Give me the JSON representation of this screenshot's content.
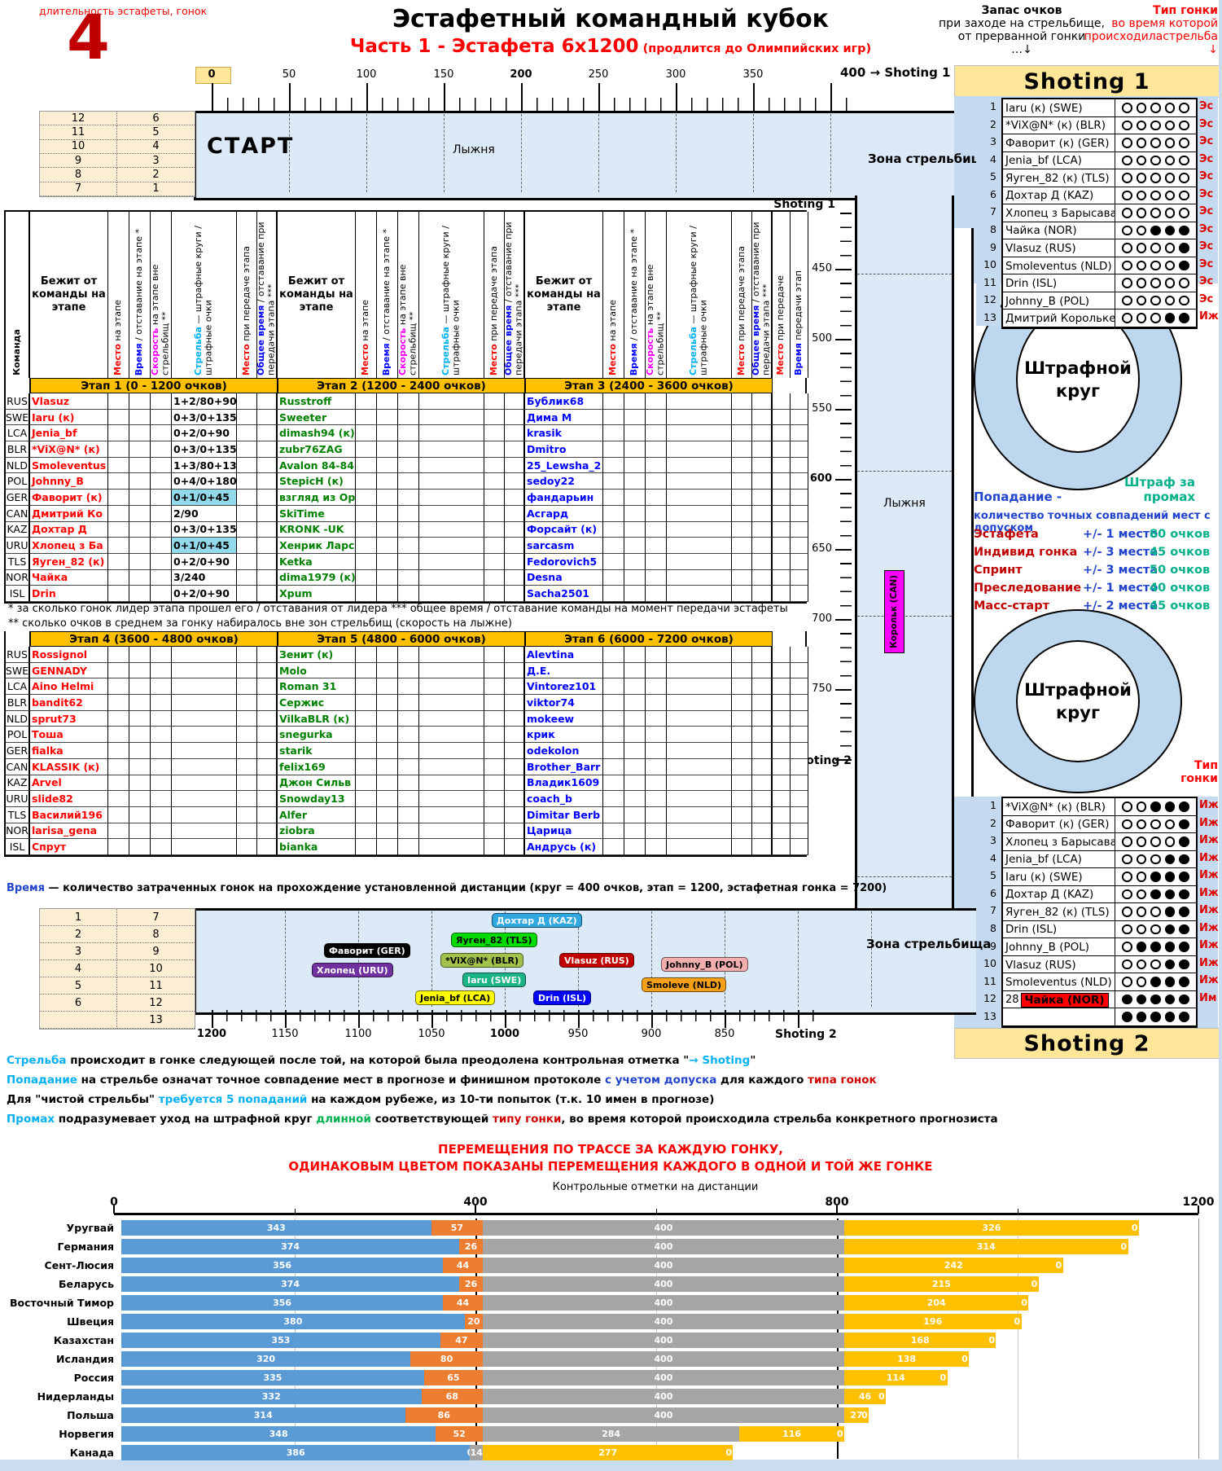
{
  "palette": {
    "accent_gold": "#FFC000",
    "header_gold": "#FFE699",
    "cream": "#FBEED2",
    "track_blue": "#DCE9F6",
    "zone_blue": "#C5DAEF",
    "ring_blue": "#BDD7EE",
    "highlight_cyan": "#92D9EC",
    "name_red": "#FF0000",
    "name_green": "#008000",
    "name_blue": "#0000FF",
    "type_red": "#E00000",
    "magenta": "#FF00FF",
    "cyan": "#00B0F0",
    "note_blue": "#2244CC",
    "teal": "#00B08B",
    "chart_blue": "#5B9BD5",
    "chart_orange": "#ED7D31",
    "chart_gray": "#A5A5A5",
    "chart_yellow": "#FFC000"
  },
  "header": {
    "duration_label": "длительность эстафеты, гонок",
    "duration_value": "4",
    "title": "Эстафетный командный кубок",
    "subtitle": "Часть 1 - Эстафета 6х1200",
    "subtitle_note": "(продлится до Олимпийских игр)",
    "reserve_line1": "Запас очков",
    "reserve_line2": "при заходе на стрельбище,",
    "reserve_line3": "от прерванной гонки",
    "reserve_arrow": "…↓",
    "type_line1": "Тип гонки",
    "type_line2": "во время которой",
    "type_line3": "происходиластрельба",
    "type_arrow": "↓"
  },
  "rulers": {
    "top_labels": [
      "0",
      "50",
      "100",
      "150",
      "200",
      "250",
      "300",
      "350"
    ],
    "top_end": "400 → Shoting 1",
    "vertical_labels": [
      "450",
      "500",
      "550",
      "600",
      "650",
      "700",
      "750"
    ],
    "vertical_end": "800 → Shoting 2",
    "shoting1_mark": "Shoting 1",
    "bottom_labels": [
      "1200",
      "1150",
      "1100",
      "1050",
      "1000",
      "950",
      "900",
      "850"
    ],
    "bottom_end": "Shoting 2"
  },
  "start_zone": {
    "start": "СТАРТ",
    "track": "Лыжня",
    "grid": [
      [
        "12",
        "6"
      ],
      [
        "11",
        "5"
      ],
      [
        "10",
        "4"
      ],
      [
        "9",
        "3"
      ],
      [
        "8",
        "2"
      ],
      [
        "7",
        "1"
      ]
    ]
  },
  "bottom_zone": {
    "grid": [
      [
        "1",
        "7"
      ],
      [
        "2",
        "8"
      ],
      [
        "3",
        "9"
      ],
      [
        "4",
        "10"
      ],
      [
        "5",
        "11"
      ],
      [
        "6",
        "12"
      ],
      [
        "",
        "13"
      ]
    ]
  },
  "zone_label": "Зона стрельбища",
  "band": {
    "track": "Лыжня",
    "skier": "Корольк (CAN)"
  },
  "penalty": {
    "circle_line1": "Штрафной",
    "circle_line2": "круг",
    "miss_line1": "Штраф за",
    "miss_line2": "промах",
    "hit_title": "Попадание -",
    "hit_desc": "количество точных совпадений мест с допуском",
    "rows": [
      {
        "race": "Эстафета",
        "tol": "+/- 1 место",
        "pts": "80 очков"
      },
      {
        "race": "Индивид гонка",
        "tol": "+/- 3 места",
        "pts": "45 очков"
      },
      {
        "race": "Спринт",
        "tol": "+/- 3 места",
        "pts": "50 очков"
      },
      {
        "race": "Преследование",
        "tol": "+/- 1 место",
        "pts": "40 очков"
      },
      {
        "race": "Масс-старт",
        "tol": "+/- 2 места",
        "pts": "45 очков"
      }
    ]
  },
  "shoting1": {
    "title": "Shoting 1",
    "rows": [
      {
        "rank": "1",
        "name": "Iaru (к) (SWE)",
        "shots": [
          0,
          0,
          0,
          0,
          0
        ],
        "type": "Эс"
      },
      {
        "rank": "2",
        "name": "*ViX@N* (к) (BLR)",
        "shots": [
          0,
          0,
          0,
          0,
          0
        ],
        "type": "Эс"
      },
      {
        "rank": "3",
        "name": "Фаворит (к) (GER)",
        "shots": [
          0,
          0,
          0,
          0,
          0
        ],
        "type": "Эс"
      },
      {
        "rank": "4",
        "name": "Jenia_bf (LCA)",
        "shots": [
          0,
          0,
          0,
          0,
          0
        ],
        "type": "Эс"
      },
      {
        "rank": "5",
        "name": "Яуген_82 (к) (TLS)",
        "shots": [
          0,
          0,
          0,
          0,
          0
        ],
        "type": "Эс"
      },
      {
        "rank": "6",
        "name": "Дохтар Д (KAZ)",
        "shots": [
          0,
          0,
          0,
          0,
          0
        ],
        "type": "Эс"
      },
      {
        "rank": "7",
        "name": "Хлопец з Барысава (к",
        "shots": [
          0,
          0,
          0,
          0,
          0
        ],
        "type": "Эс"
      },
      {
        "rank": "8",
        "name": "Чайка (NOR)",
        "shots": [
          0,
          0,
          1,
          1,
          1
        ],
        "type": "Эс"
      },
      {
        "rank": "9",
        "name": "Vlasuz (RUS)",
        "shots": [
          0,
          0,
          0,
          0,
          1
        ],
        "type": "Эс"
      },
      {
        "rank": "10",
        "name": "Smoleventus (NLD)",
        "shots": [
          0,
          0,
          0,
          0,
          1
        ],
        "type": "Эс"
      },
      {
        "rank": "11",
        "name": "Drin (ISL)",
        "shots": [
          0,
          0,
          0,
          0,
          0
        ],
        "type": "Эс"
      },
      {
        "rank": "12",
        "name": "Johnny_B  (POL)",
        "shots": [
          0,
          0,
          0,
          0,
          0
        ],
        "type": "Эс"
      },
      {
        "rank": "13",
        "name": "Дмитрий Королькеви",
        "shots": [
          0,
          0,
          0,
          1,
          1
        ],
        "type": "Иж"
      }
    ]
  },
  "shoting2": {
    "title": "Shoting 2",
    "type_line1": "Тип",
    "type_line2": "гонки",
    "rows": [
      {
        "rank": "1",
        "name": "*ViX@N* (к) (BLR)",
        "shots": [
          0,
          0,
          1,
          1,
          1
        ],
        "type": "Иж"
      },
      {
        "rank": "2",
        "name": "Фаворит (к) (GER)",
        "shots": [
          0,
          0,
          0,
          0,
          1
        ],
        "type": "Иж"
      },
      {
        "rank": "3",
        "name": "Хлопец з Барысава (к",
        "shots": [
          0,
          0,
          0,
          0,
          1
        ],
        "type": "Иж"
      },
      {
        "rank": "4",
        "name": "Jenia_bf (LCA)",
        "shots": [
          0,
          0,
          0,
          1,
          1
        ],
        "type": "Иж"
      },
      {
        "rank": "5",
        "name": "Iaru (к) (SWE)",
        "shots": [
          0,
          0,
          1,
          1,
          1
        ],
        "type": "Иж"
      },
      {
        "rank": "6",
        "name": "Дохтар Д (KAZ)",
        "shots": [
          0,
          0,
          1,
          1,
          1
        ],
        "type": "Иж"
      },
      {
        "rank": "7",
        "name": "Яуген_82 (к) (TLS)",
        "shots": [
          0,
          0,
          0,
          1,
          1
        ],
        "type": "Иж"
      },
      {
        "rank": "8",
        "name": "Drin (ISL)",
        "shots": [
          0,
          0,
          0,
          1,
          1
        ],
        "type": "Иж"
      },
      {
        "rank": "9",
        "name": "Johnny_B  (POL)",
        "shots": [
          0,
          1,
          1,
          1,
          1
        ],
        "type": "Иж"
      },
      {
        "rank": "10",
        "name": "Vlasuz (RUS)",
        "shots": [
          0,
          0,
          0,
          1,
          1
        ],
        "type": "Иж"
      },
      {
        "rank": "11",
        "name": "Smoleventus (NLD)",
        "shots": [
          0,
          0,
          1,
          1,
          1
        ],
        "type": "Иж"
      },
      {
        "rank": "12",
        "name": "Чайка (NOR)",
        "prefix": "28",
        "special": true,
        "shots": [
          1,
          1,
          1,
          1,
          1
        ],
        "type": "Им"
      },
      {
        "rank": "13",
        "name": "",
        "shots": [
          1,
          1,
          1,
          1,
          1
        ],
        "type": ""
      }
    ]
  },
  "main_table": {
    "col_komanda": "Команда",
    "col_runner": "Бежит от команды на этапе",
    "stat_headers": [
      {
        "lead": "Место",
        "lead_color": "red",
        "rest": " на этапе"
      },
      {
        "lead": "Время",
        "lead_color": "blue",
        "rest": "  / отставание на этапе *"
      },
      {
        "lead": "Скорость",
        "lead_color": "magenta",
        "rest": " на этапе вне стрельбищ **"
      },
      {
        "lead": "Стрельба",
        "lead_color": "cyan",
        "rest": "  —  штрафные круги / штрафные очки"
      },
      {
        "lead": "Место",
        "lead_color": "red",
        "rest": " при передаче этапа"
      },
      {
        "lead": "Общее время",
        "lead_color": "blue",
        "rest": "  / отставание при передачи этапа ***"
      }
    ],
    "final_headers": [
      {
        "lead": "Место",
        "lead_color": "red",
        "rest": "  при передаче"
      },
      {
        "lead": "Время",
        "lead_color": "blue",
        "rest": "  передачи этап"
      }
    ],
    "bands": [
      "Этап 1  (0 - 1200 очков)",
      "Этап 2  (1200 - 2400 очков)",
      "Этап 3  (2400 - 3600 очков)",
      "Этап 4  (3600 - 4800 очков)",
      "Этап 5  (4800 - 6000 очков)",
      "Этап 6  (6000 - 7200 очков)"
    ],
    "footnote1": "* за сколько гонок лидер этапа прошел его / отставания от лидера  *** общее время / отставание команды на момент передачи эстафеты",
    "footnote2": "** сколько очков в среднем за гонку набиралось вне зон стрельбищ (скорость на лыжне)",
    "teams": [
      {
        "code": "RUS",
        "s1": "Vlasuz",
        "sh1": "1+2/80+90",
        "hl": false,
        "s2": "Russtroff",
        "s3": "Бублик68",
        "s4": "Rossignol",
        "s5": "Зенит (к)",
        "s6": "Alevtina"
      },
      {
        "code": "SWE",
        "s1": "Iaru (к)",
        "sh1": "0+3/0+135",
        "hl": false,
        "s2": "Sweeter",
        "s3": "Дима М",
        "s4": "GENNADY",
        "s5": "Molo",
        "s6": "Д.Е."
      },
      {
        "code": "LCA",
        "s1": "Jenia_bf",
        "sh1": "0+2/0+90",
        "hl": false,
        "s2": "dimash94 (к)",
        "s3": "krasik",
        "s4": "Aino Helmi",
        "s5": "Roman 31",
        "s6": "Vintorez101"
      },
      {
        "code": "BLR",
        "s1": "*ViX@N* (к)",
        "sh1": "0+3/0+135",
        "hl": false,
        "s2": "zubr76ZAG",
        "s3": "Dmitro",
        "s4": "bandit62",
        "s5": "Сержис",
        "s6": "viktor74"
      },
      {
        "code": "NLD",
        "s1": "Smoleventus",
        "sh1": "1+3/80+135",
        "hl": false,
        "s2": "Avalon 84-84",
        "s3": "25_Lewsha_2",
        "s4": "sprut73",
        "s5": "VilkaBLR (к)",
        "s6": "mokeew"
      },
      {
        "code": "POL",
        "s1": "Johnny_B",
        "sh1": "0+4/0+180",
        "hl": false,
        "s2": "StepicH (к)",
        "s3": "sedoy22",
        "s4": "Тоша",
        "s5": "snegurka",
        "s6": "крик"
      },
      {
        "code": "GER",
        "s1": "Фаворит (к)",
        "sh1": "0+1/0+45",
        "hl": true,
        "s2": "взгляд из Ор",
        "s3": "фандарьин",
        "s4": "fialka",
        "s5": "starik",
        "s6": "odekolon"
      },
      {
        "code": "CAN",
        "s1": "Дмитрий Ко",
        "sh1": "2/90",
        "hl": false,
        "s2": "SkiTime",
        "s3": "Асгард",
        "s4": "KLASSIK (к)",
        "s5": "felix169",
        "s6": "Brother_Barr"
      },
      {
        "code": "KAZ",
        "s1": "Дохтар Д",
        "sh1": "0+3/0+135",
        "hl": false,
        "s2": "KRONK -UK",
        "s3": "Форсайт (к)",
        "s4": "Arvel",
        "s5": "Джон Сильв",
        "s6": "Владик1609"
      },
      {
        "code": "URU",
        "s1": "Хлопец з Ба",
        "sh1": "0+1/0+45",
        "hl": true,
        "s2": "Хенрик Ларс",
        "s3": "sarcasm",
        "s4": "slide82",
        "s5": "Snowday13",
        "s6": "coach_b"
      },
      {
        "code": "TLS",
        "s1": "Яуген_82 (к)",
        "sh1": "0+2/0+90",
        "hl": false,
        "s2": "Ketka",
        "s3": "Fedorovich5",
        "s4": "Василий196",
        "s5": "Alfer",
        "s6": "Dimitar Berb"
      },
      {
        "code": "NOR",
        "s1": "Чайка",
        "sh1": "3/240",
        "hl": false,
        "s2": "dima1979 (к)",
        "s3": "Desna",
        "s4": "larisa_gena",
        "s5": "ziobra",
        "s6": "Царица"
      },
      {
        "code": "ISL",
        "s1": "Drin",
        "sh1": "0+2/0+90",
        "hl": false,
        "s2": "Xpum",
        "s3": "Sacha2501",
        "s4": "Спрут",
        "s5": "bianka",
        "s6": "Андрусь (к)"
      }
    ]
  },
  "time_note": {
    "lead": "Время",
    "rest": " — количество затраченных гонок на прохождение установленной дистанции (круг = 400 очков, этап = 1200, эстафетная гонка = 7200)"
  },
  "markers": [
    {
      "label": "Фаворит (GER)",
      "x": 398,
      "y": 1158,
      "bg": "#000000",
      "fg": "#FFFFFF"
    },
    {
      "label": "Хлопец (URU)",
      "x": 383,
      "y": 1182,
      "bg": "#7030A0",
      "fg": "#FFFFFF"
    },
    {
      "label": "Jenia_bf (LCA)",
      "x": 510,
      "y": 1216,
      "bg": "#FFFF00",
      "fg": "#000000"
    },
    {
      "label": "*ViX@N* (BLR)",
      "x": 541,
      "y": 1170,
      "bg": "#A3C24C",
      "fg": "#000000"
    },
    {
      "label": "Яуген_82 (TLS)",
      "x": 554,
      "y": 1145,
      "bg": "#00DC00",
      "fg": "#000000"
    },
    {
      "label": "Iaru (SWE)",
      "x": 568,
      "y": 1194,
      "bg": "#1CB487",
      "fg": "#FFFFFF"
    },
    {
      "label": "Дохтар Д (KAZ)",
      "x": 604,
      "y": 1121,
      "bg": "#30A8DF",
      "fg": "#FFFFFF"
    },
    {
      "label": "Drin (ISL)",
      "x": 655,
      "y": 1216,
      "bg": "#0000FF",
      "fg": "#FFFFFF"
    },
    {
      "label": "Vlasuz (RUS)",
      "x": 687,
      "y": 1170,
      "bg": "#C00000",
      "fg": "#FFFFFF"
    },
    {
      "label": "Smoleve (NLD)",
      "x": 788,
      "y": 1200,
      "bg": "#F6A01A",
      "fg": "#000000"
    },
    {
      "label": "Johnny_B (POL)",
      "x": 812,
      "y": 1175,
      "bg": "#F2AFAD",
      "fg": "#000000"
    }
  ],
  "notes": [
    [
      [
        "Стрельба",
        "cyan"
      ],
      [
        " происходит в гонке следующей после той, на которой была преодолена контрольная отметка \"",
        "black"
      ],
      [
        "→ Shoting",
        "cyan"
      ],
      [
        "\"",
        "black"
      ]
    ],
    [
      [
        "Попадание",
        "cyan"
      ],
      [
        " на стрельбе означат точное совпадение мест в прогнозе и финишном протоколе ",
        "black"
      ],
      [
        "с учетом допуска",
        "blue"
      ],
      [
        " для каждого ",
        "black"
      ],
      [
        "типа гонок",
        "red"
      ]
    ],
    [
      [
        "Для \"чистой стрельбы\" ",
        "black"
      ],
      [
        "требуется 5 попаданий",
        "cyan"
      ],
      [
        " на каждом рубеже, из 10-ти попыток (т.к. 10 имен в прогнозе)",
        "black"
      ]
    ],
    [
      [
        "Промах",
        "cyan"
      ],
      [
        " подразумевает уход на штрафной круг ",
        "black"
      ],
      [
        "длинной",
        "green"
      ],
      [
        " соответствующей ",
        "black"
      ],
      [
        "типу гонки",
        "red"
      ],
      [
        ", во время которой происходила стрельба конкретного прогнозиста",
        "black"
      ]
    ]
  ],
  "chart_data": {
    "type": "bar",
    "title1": "ПЕРЕМЕЩЕНИЯ ПО ТРАССЕ ЗА КАЖДУЮ ГОНКУ,",
    "title2": "ОДИНАКОВЫМ ЦВЕТОМ ПОКАЗАНЫ ПЕРЕМЕЩЕНИЯ КАЖДОГО В ОДНОЙ И ТОЙ ЖЕ ГОНКЕ",
    "axis_title": "Контрольные отметки на дистанции",
    "ticks": [
      "0",
      "400",
      "800",
      "1200"
    ],
    "xlim": [
      0,
      1200
    ],
    "categories": [
      "Уругвай",
      "Германия",
      "Сент-Люсия",
      "Беларусь",
      "Восточный Тимор",
      "Швеция",
      "Казахстан",
      "Исландия",
      "Россия",
      "Нидерланды",
      "Польша",
      "Норвегия",
      "Канада"
    ],
    "series": [
      {
        "name": "race1",
        "color": "#5B9BD5",
        "values": [
          343,
          374,
          356,
          374,
          356,
          380,
          353,
          320,
          335,
          332,
          314,
          348,
          386
        ]
      },
      {
        "name": "race2",
        "color": "#ED7D31",
        "values": [
          57,
          26,
          44,
          26,
          44,
          20,
          47,
          80,
          65,
          68,
          86,
          52,
          0
        ]
      },
      {
        "name": "race3",
        "color": "#A5A5A5",
        "values": [
          400,
          400,
          400,
          400,
          400,
          400,
          400,
          400,
          400,
          400,
          400,
          284,
          14
        ]
      },
      {
        "name": "race4",
        "color": "#FFC000",
        "values": [
          326,
          314,
          242,
          215,
          204,
          196,
          168,
          138,
          114,
          46,
          27,
          116,
          277
        ]
      }
    ],
    "end_label": "0"
  }
}
